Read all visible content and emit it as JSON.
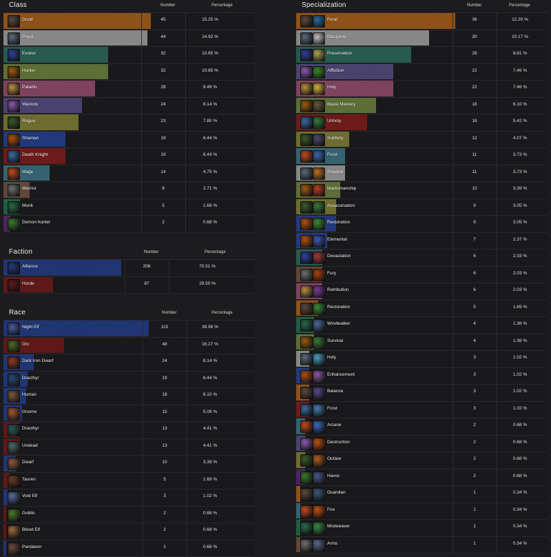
{
  "class": {
    "title": "Class",
    "number_header": "Number",
    "percentage_header": "Percentage",
    "rows": [
      {
        "label": "Druid",
        "number": "45",
        "percent": "15.25 %",
        "share": 15.25,
        "color": "#8c4f14",
        "icon": "druid-class-icon",
        "icon_color": "#5a4a3c"
      },
      {
        "label": "Priest",
        "number": "44",
        "percent": "14.92 %",
        "share": 14.92,
        "color": "#858585",
        "icon": "priest-class-icon",
        "icon_color": "#5a6a7a"
      },
      {
        "label": "Evoker",
        "number": "32",
        "percent": "10.85 %",
        "share": 10.85,
        "color": "#24574a",
        "icon": "evoker-class-icon",
        "icon_color": "#2f3f9a"
      },
      {
        "label": "Hunter",
        "number": "32",
        "percent": "10.85 %",
        "share": 10.85,
        "color": "#5a6b33",
        "icon": "hunter-class-icon",
        "icon_color": "#a05a10"
      },
      {
        "label": "Paladin",
        "number": "28",
        "percent": "9.49 %",
        "share": 9.49,
        "color": "#7c3f5c",
        "icon": "paladin-class-icon",
        "icon_color": "#b89040"
      },
      {
        "label": "Warlock",
        "number": "24",
        "percent": "8.14 %",
        "share": 8.14,
        "color": "#473f6c",
        "icon": "warlock-class-icon",
        "icon_color": "#8a5ab0"
      },
      {
        "label": "Rogue",
        "number": "23",
        "percent": "7.80 %",
        "share": 7.8,
        "color": "#6b6a2c",
        "icon": "rogue-class-icon",
        "icon_color": "#3a5a2a"
      },
      {
        "label": "Shaman",
        "number": "19",
        "percent": "6.44 %",
        "share": 6.44,
        "color": "#1e3578",
        "icon": "shaman-class-icon",
        "icon_color": "#b05010"
      },
      {
        "label": "Death Knight",
        "number": "19",
        "percent": "6.44 %",
        "share": 6.44,
        "color": "#6b1616",
        "icon": "death-knight-class-icon",
        "icon_color": "#3a6aa0"
      },
      {
        "label": "Mage",
        "number": "14",
        "percent": "4.75 %",
        "share": 4.75,
        "color": "#30606e",
        "icon": "mage-class-icon",
        "icon_color": "#c04a20"
      },
      {
        "label": "Warrior",
        "number": "8",
        "percent": "2.71 %",
        "share": 2.71,
        "color": "#5c4434",
        "icon": "warrior-class-icon",
        "icon_color": "#707070"
      },
      {
        "label": "Monk",
        "number": "5",
        "percent": "1.69 %",
        "share": 1.69,
        "color": "#1b5a40",
        "icon": "monk-class-icon",
        "icon_color": "#2a6a4a"
      },
      {
        "label": "Demon hunter",
        "number": "2",
        "percent": "0.68 %",
        "share": 0.68,
        "color": "#4a1f5c",
        "icon": "demon-hunter-class-icon",
        "icon_color": "#3a7a30"
      }
    ]
  },
  "faction": {
    "title": "Faction",
    "number_header": "Number",
    "percentage_header": "Percentage",
    "rows": [
      {
        "label": "Alliance",
        "number": "208",
        "percent": "70.51 %",
        "share": 70.51,
        "color": "#1c3170",
        "icon": "alliance-crest-icon",
        "icon_color": "#2a3a7a"
      },
      {
        "label": "Horde",
        "number": "87",
        "percent": "29.50 %",
        "share": 29.5,
        "color": "#5c1414",
        "icon": "horde-crest-icon",
        "icon_color": "#5a1a1a"
      }
    ]
  },
  "race": {
    "title": "Race",
    "number_header": "Number",
    "percentage_header": "Percentage",
    "rows": [
      {
        "label": "Night Elf",
        "number": "115",
        "percent": "38.98 %",
        "share": 38.98,
        "color": "#1c3170",
        "icon": "night-elf-race-icon",
        "icon_color": "#4a5aa0"
      },
      {
        "label": "Orc",
        "number": "48",
        "percent": "16.27 %",
        "share": 16.27,
        "color": "#5c1414",
        "icon": "orc-race-icon",
        "icon_color": "#4a6a2a"
      },
      {
        "label": "Dark Iron Dwarf",
        "number": "24",
        "percent": "8.14 %",
        "share": 8.14,
        "color": "#1c3170",
        "icon": "dark-iron-dwarf-race-icon",
        "icon_color": "#8a3a2a"
      },
      {
        "label": "Dracthyr",
        "number": "19",
        "percent": "6.44 %",
        "share": 6.44,
        "color": "#1c3170",
        "icon": "dracthyr-race-icon",
        "icon_color": "#2a4a7a"
      },
      {
        "label": "Human",
        "number": "18",
        "percent": "6.10 %",
        "share": 6.1,
        "color": "#1c3170",
        "icon": "human-race-icon",
        "icon_color": "#7a5a3a"
      },
      {
        "label": "Gnome",
        "number": "15",
        "percent": "5.08 %",
        "share": 5.08,
        "color": "#1c3170",
        "icon": "gnome-race-icon",
        "icon_color": "#a05a30"
      },
      {
        "label": "Dracthyr",
        "number": "13",
        "percent": "4.41 %",
        "share": 4.41,
        "color": "#5c1414",
        "icon": "dracthyr-race-icon",
        "icon_color": "#2a5a5a"
      },
      {
        "label": "Undead",
        "number": "13",
        "percent": "4.41 %",
        "share": 4.41,
        "color": "#5c1414",
        "icon": "undead-race-icon",
        "icon_color": "#4a6a6a"
      },
      {
        "label": "Dwarf",
        "number": "10",
        "percent": "3.39 %",
        "share": 3.39,
        "color": "#1c3170",
        "icon": "dwarf-race-icon",
        "icon_color": "#8a5a3a"
      },
      {
        "label": "Tauren",
        "number": "5",
        "percent": "1.69 %",
        "share": 1.69,
        "color": "#5c1414",
        "icon": "tauren-race-icon",
        "icon_color": "#6a3a2a"
      },
      {
        "label": "Void Elf",
        "number": "3",
        "percent": "1.02 %",
        "share": 1.02,
        "color": "#1c3170",
        "icon": "void-elf-race-icon",
        "icon_color": "#5a6aa0"
      },
      {
        "label": "Goblin",
        "number": "2",
        "percent": "0.68 %",
        "share": 0.68,
        "color": "#5c1414",
        "icon": "goblin-race-icon",
        "icon_color": "#4a7a2a"
      },
      {
        "label": "Blood Elf",
        "number": "2",
        "percent": "0.68 %",
        "share": 0.68,
        "color": "#5c1414",
        "icon": "blood-elf-race-icon",
        "icon_color": "#a06a3a"
      },
      {
        "label": "Pandaren",
        "number": "2",
        "percent": "0.68 %",
        "share": 0.68,
        "color": "#1c3170",
        "icon": "pandaren-race-icon",
        "icon_color": "#6a4a3a"
      }
    ]
  },
  "specialization": {
    "title": "Specialization",
    "number_header": "Number",
    "percentage_header": "Percentage",
    "rows": [
      {
        "label": "Feral",
        "number": "36",
        "percent": "12.20 %",
        "share": 12.2,
        "color": "#8c4f14",
        "icon": "druid-class-icon",
        "icon_color": "#5a4a3c",
        "icon2": "feral-spec-icon",
        "icon2_color": "#2a6aa0"
      },
      {
        "label": "Discipline",
        "number": "30",
        "percent": "10.17 %",
        "share": 10.17,
        "color": "#858585",
        "icon": "priest-class-icon",
        "icon_color": "#5a6a7a",
        "icon2": "discipline-spec-icon",
        "icon2_color": "#c0c0c0"
      },
      {
        "label": "Preservation",
        "number": "26",
        "percent": "8.81 %",
        "share": 8.81,
        "color": "#24574a",
        "icon": "evoker-class-icon",
        "icon_color": "#2f3f9a",
        "icon2": "preservation-spec-icon",
        "icon2_color": "#b0a050"
      },
      {
        "label": "Affliction",
        "number": "22",
        "percent": "7.46 %",
        "share": 7.46,
        "color": "#473f6c",
        "icon": "warlock-class-icon",
        "icon_color": "#8a5ab0",
        "icon2": "affliction-spec-icon",
        "icon2_color": "#3a8a2a"
      },
      {
        "label": "Holy",
        "number": "22",
        "percent": "7.46 %",
        "share": 7.46,
        "color": "#7c3f5c",
        "icon": "paladin-class-icon",
        "icon_color": "#b89040",
        "icon2": "holy-spec-icon",
        "icon2_color": "#d0b040"
      },
      {
        "label": "Beast Mastery",
        "number": "18",
        "percent": "6.10 %",
        "share": 6.1,
        "color": "#5a6b33",
        "icon": "hunter-class-icon",
        "icon_color": "#a05a10",
        "icon2": "beast-mastery-spec-icon",
        "icon2_color": "#6a5a3a"
      },
      {
        "label": "Unholy",
        "number": "16",
        "percent": "5.42 %",
        "share": 5.42,
        "color": "#6b1616",
        "icon": "death-knight-class-icon",
        "icon_color": "#3a6aa0",
        "icon2": "unholy-spec-icon",
        "icon2_color": "#3a7a3a"
      },
      {
        "label": "Subtlety",
        "number": "12",
        "percent": "4.07 %",
        "share": 4.07,
        "color": "#6b6a2c",
        "icon": "rogue-class-icon",
        "icon_color": "#3a5a2a",
        "icon2": "subtlety-spec-icon",
        "icon2_color": "#4a4a6a"
      },
      {
        "label": "Frost",
        "number": "11",
        "percent": "3.73 %",
        "share": 3.73,
        "color": "#30606e",
        "icon": "mage-class-icon",
        "icon_color": "#c04a20",
        "icon2": "frost-spec-icon",
        "icon2_color": "#3a6ab0"
      },
      {
        "label": "Shadow",
        "number": "11",
        "percent": "3.73 %",
        "share": 3.73,
        "color": "#858585",
        "icon": "priest-class-icon",
        "icon_color": "#5a6a7a",
        "icon2": "shadow-spec-icon",
        "icon2_color": "#c07020"
      },
      {
        "label": "Marksmanship",
        "number": "10",
        "percent": "3.39 %",
        "share": 3.39,
        "color": "#5a6b33",
        "icon": "hunter-class-icon",
        "icon_color": "#a05a10",
        "icon2": "marksmanship-spec-icon",
        "icon2_color": "#b04020"
      },
      {
        "label": "Assassination",
        "number": "9",
        "percent": "3.05 %",
        "share": 3.05,
        "color": "#6b6a2c",
        "icon": "rogue-class-icon",
        "icon_color": "#3a5a2a",
        "icon2": "assassination-spec-icon",
        "icon2_color": "#3a7a3a"
      },
      {
        "label": "Restoration",
        "number": "9",
        "percent": "3.05 %",
        "share": 3.05,
        "color": "#1e3578",
        "icon": "shaman-class-icon",
        "icon_color": "#b05010",
        "icon2": "restoration-spec-icon",
        "icon2_color": "#3a8a3a"
      },
      {
        "label": "Elemental",
        "number": "7",
        "percent": "2.37 %",
        "share": 2.37,
        "color": "#1e3578",
        "icon": "shaman-class-icon",
        "icon_color": "#b05010",
        "icon2": "elemental-spec-icon",
        "icon2_color": "#3a5ab0"
      },
      {
        "label": "Devastation",
        "number": "6",
        "percent": "2.03 %",
        "share": 2.03,
        "color": "#24574a",
        "icon": "evoker-class-icon",
        "icon_color": "#2f3f9a",
        "icon2": "devastation-spec-icon",
        "icon2_color": "#a03a3a"
      },
      {
        "label": "Fury",
        "number": "6",
        "percent": "2.03 %",
        "share": 2.03,
        "color": "#5c4434",
        "icon": "warrior-class-icon",
        "icon_color": "#707070",
        "icon2": "fury-spec-icon",
        "icon2_color": "#b04010"
      },
      {
        "label": "Retribution",
        "number": "6",
        "percent": "2.03 %",
        "share": 2.03,
        "color": "#7c3f5c",
        "icon": "paladin-class-icon",
        "icon_color": "#b89040",
        "icon2": "retribution-spec-icon",
        "icon2_color": "#7a3a9a"
      },
      {
        "label": "Restoration",
        "number": "5",
        "percent": "1.69 %",
        "share": 1.69,
        "color": "#8c4f14",
        "icon": "druid-class-icon",
        "icon_color": "#5a4a3c",
        "icon2": "restoration-spec-icon",
        "icon2_color": "#3a8a3a"
      },
      {
        "label": "Windwalker",
        "number": "4",
        "percent": "1.36 %",
        "share": 1.36,
        "color": "#1b5a40",
        "icon": "monk-class-icon",
        "icon_color": "#2a6a4a",
        "icon2": "windwalker-spec-icon",
        "icon2_color": "#4a6a9a"
      },
      {
        "label": "Survival",
        "number": "4",
        "percent": "1.36 %",
        "share": 1.36,
        "color": "#5a6b33",
        "icon": "hunter-class-icon",
        "icon_color": "#a05a10",
        "icon2": "survival-spec-icon",
        "icon2_color": "#3a7a3a"
      },
      {
        "label": "Holy",
        "number": "3",
        "percent": "1.02 %",
        "share": 1.02,
        "color": "#858585",
        "icon": "priest-class-icon",
        "icon_color": "#5a6a7a",
        "icon2": "holy-spec-icon",
        "icon2_color": "#4a9ac0"
      },
      {
        "label": "Enhancement",
        "number": "3",
        "percent": "1.02 %",
        "share": 1.02,
        "color": "#1e3578",
        "icon": "shaman-class-icon",
        "icon_color": "#b05010",
        "icon2": "enhancement-spec-icon",
        "icon2_color": "#8a5aa0"
      },
      {
        "label": "Balance",
        "number": "3",
        "percent": "1.02 %",
        "share": 1.02,
        "color": "#8c4f14",
        "icon": "druid-class-icon",
        "icon_color": "#5a4a3c",
        "icon2": "balance-spec-icon",
        "icon2_color": "#5a4a8a"
      },
      {
        "label": "Frost",
        "number": "3",
        "percent": "1.02 %",
        "share": 1.02,
        "color": "#6b1616",
        "icon": "death-knight-class-icon",
        "icon_color": "#3a6aa0",
        "icon2": "frost-spec-icon",
        "icon2_color": "#4a7ab0"
      },
      {
        "label": "Arcane",
        "number": "2",
        "percent": "0.68 %",
        "share": 0.68,
        "color": "#30606e",
        "icon": "mage-class-icon",
        "icon_color": "#c04a20",
        "icon2": "arcane-spec-icon",
        "icon2_color": "#3a6ac0"
      },
      {
        "label": "Destruction",
        "number": "2",
        "percent": "0.68 %",
        "share": 0.68,
        "color": "#473f6c",
        "icon": "warlock-class-icon",
        "icon_color": "#8a5ab0",
        "icon2": "destruction-spec-icon",
        "icon2_color": "#c05010"
      },
      {
        "label": "Outlaw",
        "number": "2",
        "percent": "0.68 %",
        "share": 0.68,
        "color": "#6b6a2c",
        "icon": "rogue-class-icon",
        "icon_color": "#3a5a2a",
        "icon2": "outlaw-spec-icon",
        "icon2_color": "#b06020"
      },
      {
        "label": "Havoc",
        "number": "2",
        "percent": "0.68 %",
        "share": 0.68,
        "color": "#4a1f5c",
        "icon": "demon-hunter-class-icon",
        "icon_color": "#3a7a30",
        "icon2": "havoc-spec-icon",
        "icon2_color": "#4a5a8a"
      },
      {
        "label": "Guardian",
        "number": "1",
        "percent": "0.34 %",
        "share": 0.34,
        "color": "#8c4f14",
        "icon": "druid-class-icon",
        "icon_color": "#5a4a3c",
        "icon2": "guardian-spec-icon",
        "icon2_color": "#3a5a7a"
      },
      {
        "label": "Fire",
        "number": "1",
        "percent": "0.34 %",
        "share": 0.34,
        "color": "#30606e",
        "icon": "mage-class-icon",
        "icon_color": "#c04a20",
        "icon2": "fire-spec-icon",
        "icon2_color": "#c05010"
      },
      {
        "label": "Mistweaver",
        "number": "1",
        "percent": "0.34 %",
        "share": 0.34,
        "color": "#1b5a40",
        "icon": "monk-class-icon",
        "icon_color": "#2a6a4a",
        "icon2": "mistweaver-spec-icon",
        "icon2_color": "#3a8a4a"
      },
      {
        "label": "Arms",
        "number": "1",
        "percent": "0.34 %",
        "share": 0.34,
        "color": "#5c4434",
        "icon": "warrior-class-icon",
        "icon_color": "#707070",
        "icon2": "arms-spec-icon",
        "icon2_color": "#5a6a8a"
      }
    ]
  }
}
